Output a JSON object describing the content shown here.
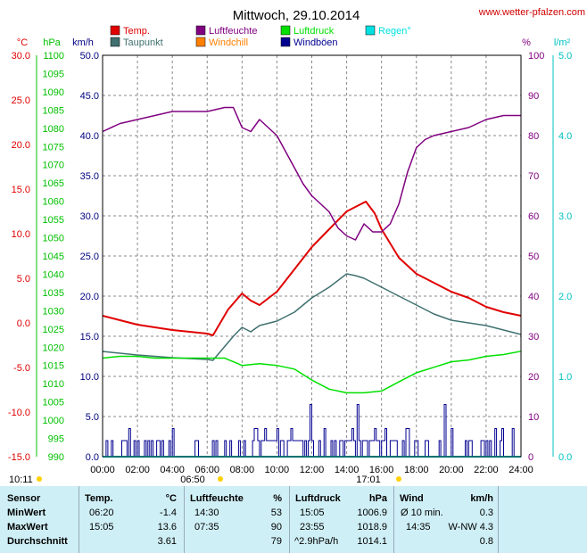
{
  "title": "Mittwoch, 29.10.2014",
  "site": "www.wetter-pfalzen.com",
  "legend": [
    {
      "label": "Temp.",
      "color": "#e00000"
    },
    {
      "label": "Luftfeuchte",
      "color": "#800080"
    },
    {
      "label": "Luftdruck",
      "color": "#00e000"
    },
    {
      "label": "Regen°",
      "color": "#00e0e0"
    },
    {
      "label": "Taupunkt",
      "color": "#407070"
    },
    {
      "label": "Windchill",
      "color": "#ff8000"
    },
    {
      "label": "Windböen",
      "color": "#000090"
    }
  ],
  "chart_data": {
    "type": "line",
    "x_unit": "hours",
    "xlim": [
      0,
      24
    ],
    "x_tick_labels": [
      "00:00",
      "02:00",
      "04:00",
      "06:00",
      "08:00",
      "10:00",
      "12:00",
      "14:00",
      "16:00",
      "18:00",
      "20:00",
      "22:00",
      "24:00"
    ],
    "axes": [
      {
        "unit": "°C",
        "color": "#e00000",
        "ylim": [
          -15,
          30
        ],
        "ticks": [
          "30.0",
          "25.0",
          "20.0",
          "15.0",
          "10.0",
          "5.0",
          "0.0",
          "-5.0",
          "-10.0",
          "-15.0"
        ]
      },
      {
        "unit": "hPa",
        "color": "#00c000",
        "ylim": [
          990,
          1100
        ],
        "ticks": [
          "1100",
          "1095",
          "1090",
          "1085",
          "1080",
          "1075",
          "1070",
          "1065",
          "1060",
          "1055",
          "1050",
          "1045",
          "1040",
          "1035",
          "1030",
          "1025",
          "1020",
          "1015",
          "1010",
          "1005",
          "1000",
          "995",
          "990"
        ]
      },
      {
        "unit": "km/h",
        "color": "#000080",
        "ylim": [
          0,
          50
        ],
        "ticks": [
          "50.0",
          "45.0",
          "40.0",
          "35.0",
          "30.0",
          "25.0",
          "20.0",
          "15.0",
          "10.0",
          "5.0",
          "0.0"
        ]
      },
      {
        "unit": "%",
        "color": "#800080",
        "ylim": [
          0,
          100
        ],
        "ticks": [
          "100",
          "90",
          "80",
          "70",
          "60",
          "50",
          "40",
          "30",
          "20",
          "10",
          "0"
        ]
      },
      {
        "unit": "l/m²",
        "color": "#00c0c0",
        "ylim": [
          0,
          5
        ],
        "ticks": [
          "5.0",
          "4.0",
          "3.0",
          "2.0",
          "1.0",
          "0.0"
        ]
      }
    ],
    "series": [
      {
        "name": "Temp.",
        "axis": "°C",
        "color": "#e00000",
        "x": [
          0,
          1,
          2,
          3,
          4,
          5,
          6,
          6.33,
          7.2,
          8,
          8.5,
          9,
          10,
          11,
          12,
          13,
          14,
          14.5,
          15.1,
          15.6,
          16,
          17,
          18,
          19,
          20,
          21,
          22,
          23,
          24
        ],
        "y": [
          0.8,
          0.3,
          -0.2,
          -0.5,
          -0.8,
          -1.0,
          -1.2,
          -1.4,
          1.5,
          3.3,
          2.5,
          2.0,
          3.5,
          6.0,
          8.5,
          10.5,
          12.5,
          13.0,
          13.6,
          12.3,
          10.5,
          7.3,
          5.5,
          4.5,
          3.5,
          2.8,
          1.8,
          1.2,
          0.8
        ]
      },
      {
        "name": "Taupunkt",
        "axis": "°C",
        "color": "#407070",
        "x": [
          0,
          2,
          4,
          6,
          6.33,
          7.5,
          8,
          8.5,
          9,
          10,
          11,
          12,
          13,
          14,
          14.5,
          15,
          16,
          17,
          18,
          19,
          20,
          22,
          23,
          24
        ],
        "y": [
          -3.2,
          -3.6,
          -3.9,
          -4.1,
          -4.2,
          -1.5,
          -0.5,
          -1.0,
          -0.3,
          0.2,
          1.2,
          2.8,
          4.0,
          5.5,
          5.3,
          5.0,
          4.0,
          3.0,
          2.0,
          1.0,
          0.3,
          -0.3,
          -0.8,
          -1.3
        ]
      },
      {
        "name": "Luftfeuchte",
        "axis": "%",
        "color": "#800080",
        "x": [
          0,
          1,
          2,
          3,
          4,
          5,
          6,
          7,
          7.5,
          8,
          8.5,
          9,
          10,
          11,
          11.5,
          12,
          12.5,
          13,
          13.5,
          14,
          14.5,
          15,
          15.5,
          16,
          16.5,
          17,
          17.5,
          18,
          18.5,
          19,
          20,
          21,
          22,
          23,
          24
        ],
        "y": [
          81,
          83,
          84,
          85,
          86,
          86,
          86,
          87,
          87,
          82,
          81,
          84,
          80,
          72,
          68,
          65,
          63,
          61,
          57,
          55,
          54,
          58,
          56,
          56,
          58,
          63,
          71,
          77,
          79,
          80,
          81,
          82,
          84,
          85,
          85
        ]
      },
      {
        "name": "Luftdruck",
        "axis": "hPa",
        "color": "#00e000",
        "x": [
          0,
          1,
          2,
          3,
          4,
          5,
          6,
          7,
          7.5,
          8,
          9,
          10,
          11,
          12,
          13,
          14,
          15,
          16,
          17,
          18,
          19,
          20,
          21,
          22,
          23,
          24
        ],
        "y": [
          1017,
          1017.5,
          1017.5,
          1017,
          1017,
          1017,
          1017,
          1017,
          1016,
          1015,
          1015.5,
          1015,
          1014,
          1011,
          1008.5,
          1007.5,
          1007.5,
          1008,
          1010.5,
          1013,
          1014.5,
          1016,
          1016.5,
          1017.5,
          1018,
          1018.9
        ]
      }
    ]
  },
  "time_markers": [
    "10:11",
    "06:50",
    "17:01"
  ],
  "stats": {
    "header": {
      "sensor": "Sensor",
      "temp": "Temp.",
      "temp_unit": "°C",
      "hum": "Luftfeuchte",
      "hum_unit": "%",
      "press": "Luftdruck",
      "press_unit": "hPa",
      "wind": "Wind",
      "wind_unit": "km/h"
    },
    "min": {
      "label": "MinWert",
      "temp_time": "06:20",
      "temp_val": "-1.4",
      "hum_time": "14:30",
      "hum_val": "53",
      "press_time": "15:05",
      "press_val": "1006.9",
      "wind_time": "Ø 10 min.",
      "wind_val": "0.3"
    },
    "max": {
      "label": "MaxWert",
      "temp_time": "15:05",
      "temp_val": "13.6",
      "hum_time": "07:35",
      "hum_val": "90",
      "press_time": "23:55",
      "press_val": "1018.9",
      "wind_time": "14:35",
      "wind_val": "W-NW 4.3"
    },
    "avg": {
      "label": "Durchschnitt",
      "temp_val": "3.61",
      "hum_val": "79",
      "press_time": "^2.9hPa/h",
      "press_val": "1014.1",
      "wind_val": "0.8"
    }
  }
}
